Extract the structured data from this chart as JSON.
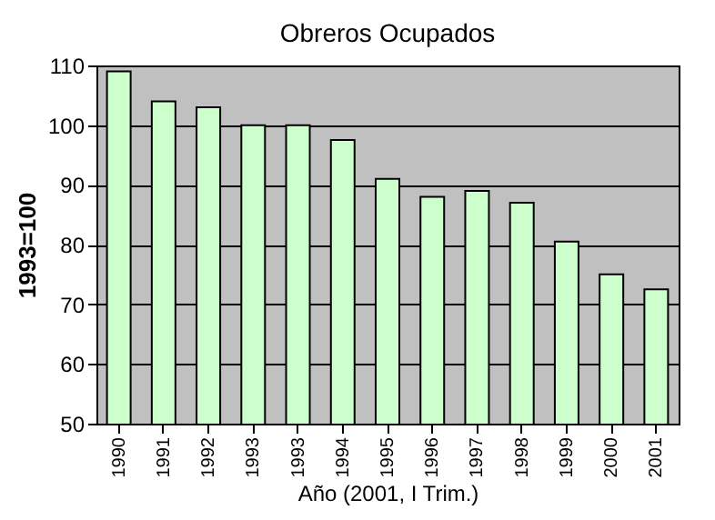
{
  "chart_data": {
    "type": "bar",
    "title": "Obreros Ocupados",
    "xlabel": "Año (2001, I Trim.)",
    "ylabel": "1993=100",
    "categories": [
      "1990",
      "1991",
      "1992",
      "1993",
      "1993",
      "1994",
      "1995",
      "1996",
      "1997",
      "1998",
      "1999",
      "2000",
      "2001"
    ],
    "values": [
      109,
      104,
      103,
      100,
      100,
      97.5,
      91,
      88,
      89,
      87,
      80.5,
      75,
      72.5
    ],
    "color": "#ccffcc",
    "ylim": [
      50,
      110
    ],
    "yticks": [
      50,
      60,
      70,
      80,
      90,
      100,
      110
    ],
    "grid": "y"
  }
}
